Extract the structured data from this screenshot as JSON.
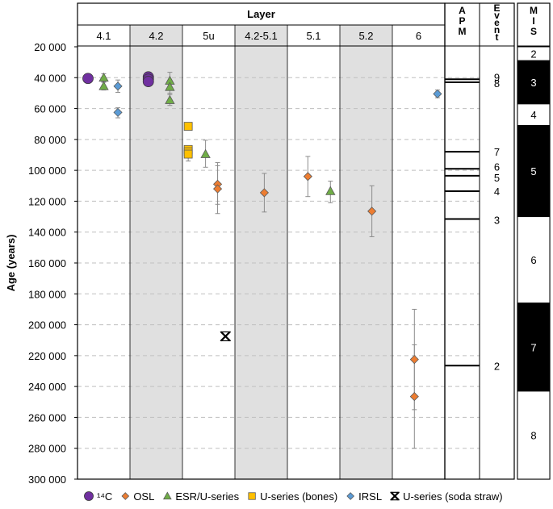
{
  "chart_data": {
    "type": "scatter",
    "ylabel": "Age (years)",
    "y_axis_inverted": true,
    "ylim": [
      20000,
      300000
    ],
    "y_ticks": [
      "20 000",
      "40 000",
      "60 000",
      "80 000",
      "100 000",
      "120 000",
      "140 000",
      "160 000",
      "180 000",
      "200 000",
      "220 000",
      "240 000",
      "260 000",
      "280 000",
      "300 000"
    ],
    "grid": "dashed horizontal",
    "layer_header": "Layer",
    "layers": [
      {
        "label": "4.1",
        "shaded": false
      },
      {
        "label": "4.2",
        "shaded": true
      },
      {
        "label": "5u",
        "shaded": false
      },
      {
        "label": "4.2-5.1",
        "shaded": true
      },
      {
        "label": "5.1",
        "shaded": false
      },
      {
        "label": "5.2",
        "shaded": true
      },
      {
        "label": "6",
        "shaded": false
      }
    ],
    "side_headers": {
      "apm": "A P M",
      "event": "Event",
      "mis": "M I S"
    },
    "colors": {
      "c14": "#7030a0",
      "osl": "#ed7d31",
      "esr": "#70ad47",
      "useries_bones": "#ffc000",
      "irsl": "#5b9bd5",
      "grid": "#bfbfbf",
      "shade": "#e0e0e0",
      "error_bar": "#8c8c8c"
    },
    "series": [
      {
        "key": "c14",
        "name": "¹⁴C",
        "marker": "circle",
        "points": [
          {
            "layer": 0,
            "pos": 0.2,
            "y": 40500
          },
          {
            "layer": 1,
            "pos": 0.35,
            "y": 39500
          },
          {
            "layer": 1,
            "pos": 0.35,
            "y": 41000
          },
          {
            "layer": 1,
            "pos": 0.35,
            "y": 42500
          }
        ]
      },
      {
        "key": "osl",
        "name": "OSL",
        "marker": "diamond",
        "points": [
          {
            "layer": 2,
            "pos": 0.67,
            "y": 109000,
            "err_low": 97000,
            "err_high": 122000
          },
          {
            "layer": 2,
            "pos": 0.67,
            "y": 112000,
            "err_low": 95000,
            "err_high": 128000
          },
          {
            "layer": 3,
            "pos": 0.56,
            "y": 114500,
            "err_low": 102000,
            "err_high": 127000
          },
          {
            "layer": 4,
            "pos": 0.39,
            "y": 104000,
            "err_low": 91000,
            "err_high": 117000
          },
          {
            "layer": 5,
            "pos": 0.61,
            "y": 126500,
            "err_low": 110000,
            "err_high": 143000
          },
          {
            "layer": 6,
            "pos": 0.42,
            "y": 222500,
            "err_low": 190000,
            "err_high": 255000
          },
          {
            "layer": 6,
            "pos": 0.42,
            "y": 246500,
            "err_low": 213000,
            "err_high": 280000
          }
        ]
      },
      {
        "key": "esr",
        "name": "ESR/U-series",
        "marker": "triangle",
        "points": [
          {
            "layer": 0,
            "pos": 0.5,
            "y": 40000,
            "err_low": 37500,
            "err_high": 42500
          },
          {
            "layer": 0,
            "pos": 0.5,
            "y": 45500,
            "err_low": 43000,
            "err_high": 48000
          },
          {
            "layer": 1,
            "pos": 0.76,
            "y": 42000,
            "err_low": 36500,
            "err_high": 48000
          },
          {
            "layer": 1,
            "pos": 0.76,
            "y": 46000,
            "err_low": 42000,
            "err_high": 51000
          },
          {
            "layer": 1,
            "pos": 0.76,
            "y": 54500,
            "err_low": 50000,
            "err_high": 58000
          },
          {
            "layer": 2,
            "pos": 0.44,
            "y": 89500,
            "err_low": 80500,
            "err_high": 98000
          },
          {
            "layer": 4,
            "pos": 0.82,
            "y": 113500,
            "err_low": 107000,
            "err_high": 121000
          }
        ]
      },
      {
        "key": "useries_bones",
        "name": "U-series (bones)",
        "marker": "square",
        "points": [
          {
            "layer": 2,
            "pos": 0.11,
            "y": 71500,
            "err_low": 70000,
            "err_high": 74000
          },
          {
            "layer": 2,
            "pos": 0.11,
            "y": 86500,
            "err_low": 84000,
            "err_high": 89000
          },
          {
            "layer": 2,
            "pos": 0.11,
            "y": 88000,
            "err_low": 85500,
            "err_high": 91000
          },
          {
            "layer": 2,
            "pos": 0.11,
            "y": 89500,
            "err_low": 87000,
            "err_high": 94000
          }
        ]
      },
      {
        "key": "irsl",
        "name": "IRSL",
        "marker": "diamond",
        "points": [
          {
            "layer": 0,
            "pos": 0.77,
            "y": 45500,
            "err_low": 41500,
            "err_high": 49500
          },
          {
            "layer": 0,
            "pos": 0.77,
            "y": 62500,
            "err_low": 59500,
            "err_high": 66000
          },
          {
            "layer": 6,
            "pos": 0.86,
            "y": 50500,
            "err_low": 48000,
            "err_high": 53000
          }
        ]
      },
      {
        "key": "useries_soda",
        "name": "U-series (soda straw)",
        "marker": "cross",
        "points": [
          {
            "layer": 2,
            "pos": 0.82,
            "y": 207500
          }
        ]
      }
    ],
    "apm_lines": [
      41000,
      43000,
      88000,
      99000,
      103500,
      113500,
      131500,
      226500
    ],
    "events": [
      {
        "label": "9",
        "y": 39500
      },
      {
        "label": "8",
        "y": 43500
      },
      {
        "label": "7",
        "y": 88000
      },
      {
        "label": "6",
        "y": 97500
      },
      {
        "label": "5",
        "y": 104500
      },
      {
        "label": "4",
        "y": 113500
      },
      {
        "label": "3",
        "y": 132000
      },
      {
        "label": "2",
        "y": 226500
      }
    ],
    "mis": [
      {
        "label": "2",
        "from": 20000,
        "to": 29000,
        "black": false
      },
      {
        "label": "3",
        "from": 29000,
        "to": 57000,
        "black": true
      },
      {
        "label": "4",
        "from": 57000,
        "to": 71000,
        "black": false
      },
      {
        "label": "5",
        "from": 71000,
        "to": 130000,
        "black": true
      },
      {
        "label": "6",
        "from": 130000,
        "to": 186000,
        "black": false
      },
      {
        "label": "7",
        "from": 186000,
        "to": 243000,
        "black": true
      },
      {
        "label": "8",
        "from": 243000,
        "to": 300000,
        "black": false
      }
    ],
    "legend_position": "bottom"
  }
}
